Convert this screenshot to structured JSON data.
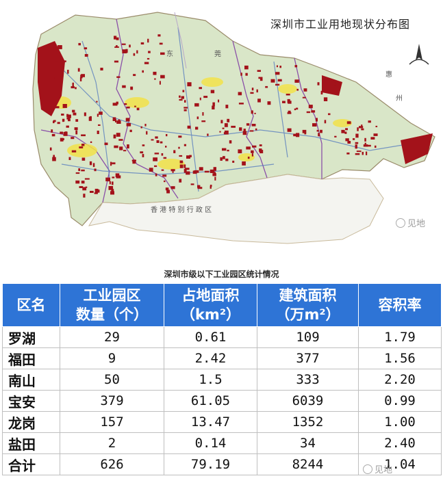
{
  "map": {
    "title": "深圳市工业用地现状分布图",
    "regions": {
      "dongguan_1": "东",
      "dongguan_2": "莞",
      "huizhou_1": "惠",
      "huizhou_2": "州",
      "hongkong": "香 港 特 别 行 政 区"
    },
    "watermark": "见地",
    "colors": {
      "land": "#d9e6c8",
      "industrial": "#a3121a",
      "planned": "#f2e24a",
      "boundary": "#8a4fa8",
      "roads": "#5a7fbf",
      "sea": "#ffffff"
    }
  },
  "table": {
    "caption": "深圳市级以下工业园区统计情况",
    "headers": [
      {
        "lines": [
          "区名"
        ]
      },
      {
        "lines": [
          "工业园区",
          "数量（个）"
        ]
      },
      {
        "lines": [
          "占地面积",
          "（km²）"
        ]
      },
      {
        "lines": [
          "建筑面积",
          "（万m²）"
        ]
      },
      {
        "lines": [
          "容积率"
        ]
      }
    ],
    "rows": [
      {
        "name": "罗湖",
        "count": "29",
        "area": "0.61",
        "building": "109",
        "far": "1.79"
      },
      {
        "name": "福田",
        "count": "9",
        "area": "2.42",
        "building": "377",
        "far": "1.56"
      },
      {
        "name": "南山",
        "count": "50",
        "area": "1.5",
        "building": "333",
        "far": "2.20"
      },
      {
        "name": "宝安",
        "count": "379",
        "area": "61.05",
        "building": "6039",
        "far": "0.99"
      },
      {
        "name": "龙岗",
        "count": "157",
        "area": "13.47",
        "building": "1352",
        "far": "1.00"
      },
      {
        "name": "盐田",
        "count": "2",
        "area": "0.14",
        "building": "34",
        "far": "2.40"
      },
      {
        "name": "合计",
        "count": "626",
        "area": "79.19",
        "building": "8244",
        "far": "1.04"
      }
    ],
    "header_color": "#2e74d6",
    "watermark": "见地"
  }
}
